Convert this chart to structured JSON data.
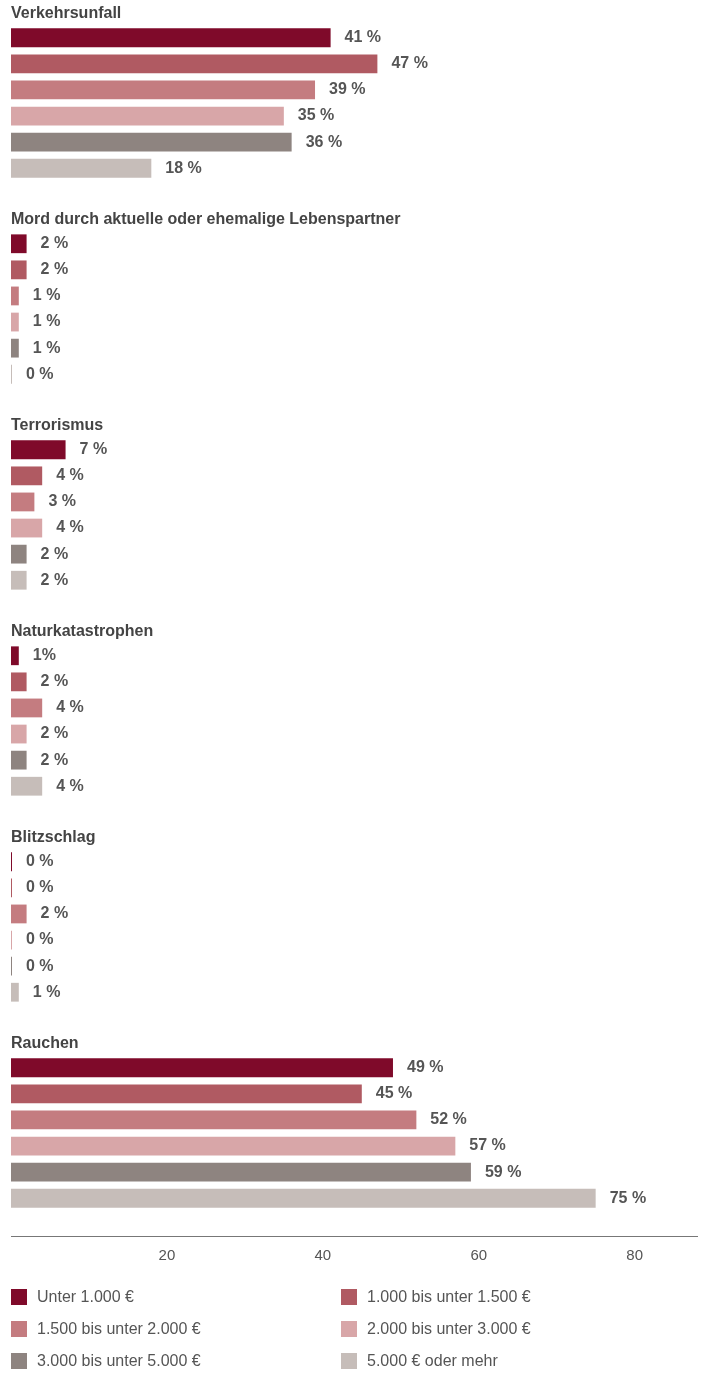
{
  "chart_data": {
    "type": "bar",
    "orientation": "horizontal",
    "categories": [
      "Verkehrsunfall",
      "Mord durch aktuelle oder ehemalige Lebenspartner",
      "Terrorismus",
      "Naturkatastrophen",
      "Blitzschlag",
      "Rauchen"
    ],
    "series": [
      {
        "name": "Unter 1.000 €",
        "color": "#7f0a2a",
        "values": [
          41,
          2,
          7,
          1,
          0,
          49
        ],
        "value_labels": [
          "41 %",
          "2 %",
          "7 %",
          "1%",
          "0 %",
          "49 %"
        ]
      },
      {
        "name": "1.000 bis unter 1.500 €",
        "color": "#b05a62",
        "values": [
          47,
          2,
          4,
          2,
          0,
          45
        ],
        "value_labels": [
          "47 %",
          "2 %",
          "4 %",
          "2 %",
          "0 %",
          "45 %"
        ]
      },
      {
        "name": "1.500 bis unter 2.000 €",
        "color": "#c47c80",
        "values": [
          39,
          1,
          3,
          4,
          2,
          52
        ],
        "value_labels": [
          "39 %",
          "1 %",
          "3 %",
          "4 %",
          "2 %",
          "52 %"
        ]
      },
      {
        "name": "2.000 bis unter 3.000 €",
        "color": "#d8a6a8",
        "values": [
          35,
          1,
          4,
          2,
          0,
          57
        ],
        "value_labels": [
          "35 %",
          "1 %",
          "4 %",
          "2 %",
          "0 %",
          "57 %"
        ]
      },
      {
        "name": "3.000 bis unter 5.000 €",
        "color": "#8e8480",
        "values": [
          36,
          1,
          2,
          2,
          0,
          59
        ],
        "value_labels": [
          "36 %",
          "1 %",
          "2 %",
          "2 %",
          "0 %",
          "59 %"
        ]
      },
      {
        "name": "5.000 € oder mehr",
        "color": "#c6bdb9",
        "values": [
          18,
          0,
          2,
          4,
          1,
          75
        ],
        "value_labels": [
          "18 %",
          "0 %",
          "2 %",
          "4 %",
          "1 %",
          "75 %"
        ]
      }
    ],
    "xlim": [
      0,
      88
    ],
    "xticks": [
      20,
      40,
      60,
      80
    ],
    "grid": false,
    "legend": "bottom"
  }
}
